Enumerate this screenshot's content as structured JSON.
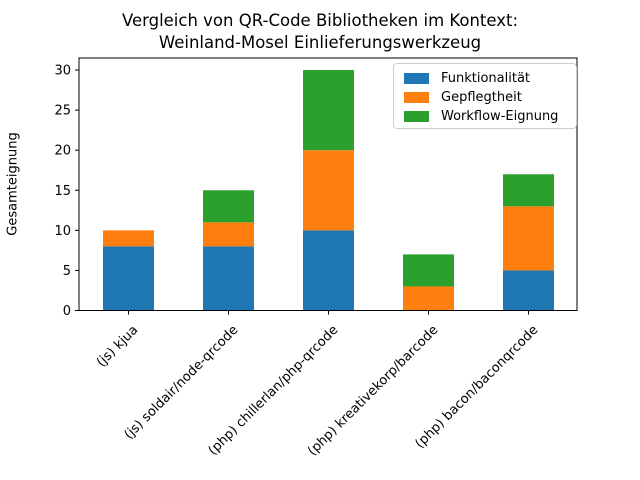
{
  "chart_data": {
    "type": "bar",
    "stacked": true,
    "title": "Vergleich von QR-Code Bibliotheken im Kontext:\nWeinland-Mosel Einlieferungswerkzeug",
    "ylabel": "Gesamteignung",
    "xlabel": "",
    "categories": [
      "(js) kjua",
      "(js) soldair/node-qrcode",
      "(php) chillerlan/php-qrcode",
      "(php) kreativekorp/barcode",
      "(php) bacon/baconqrcode"
    ],
    "series": [
      {
        "name": "Funktionalität",
        "color": "#1f77b4",
        "values": [
          8,
          8,
          10,
          0,
          5
        ]
      },
      {
        "name": "Gepflegtheit",
        "color": "#ff7f0e",
        "values": [
          2,
          3,
          10,
          3,
          8
        ]
      },
      {
        "name": "Workflow-Eignung",
        "color": "#2ca02c",
        "values": [
          0,
          4,
          10,
          4,
          4
        ]
      }
    ],
    "yticks": [
      0,
      5,
      10,
      15,
      20,
      25,
      30
    ],
    "ylim": [
      0,
      31.5
    ],
    "grid": false,
    "legend_position": "upper right",
    "x_tick_rotation": 45,
    "axis_color": "#000000"
  }
}
